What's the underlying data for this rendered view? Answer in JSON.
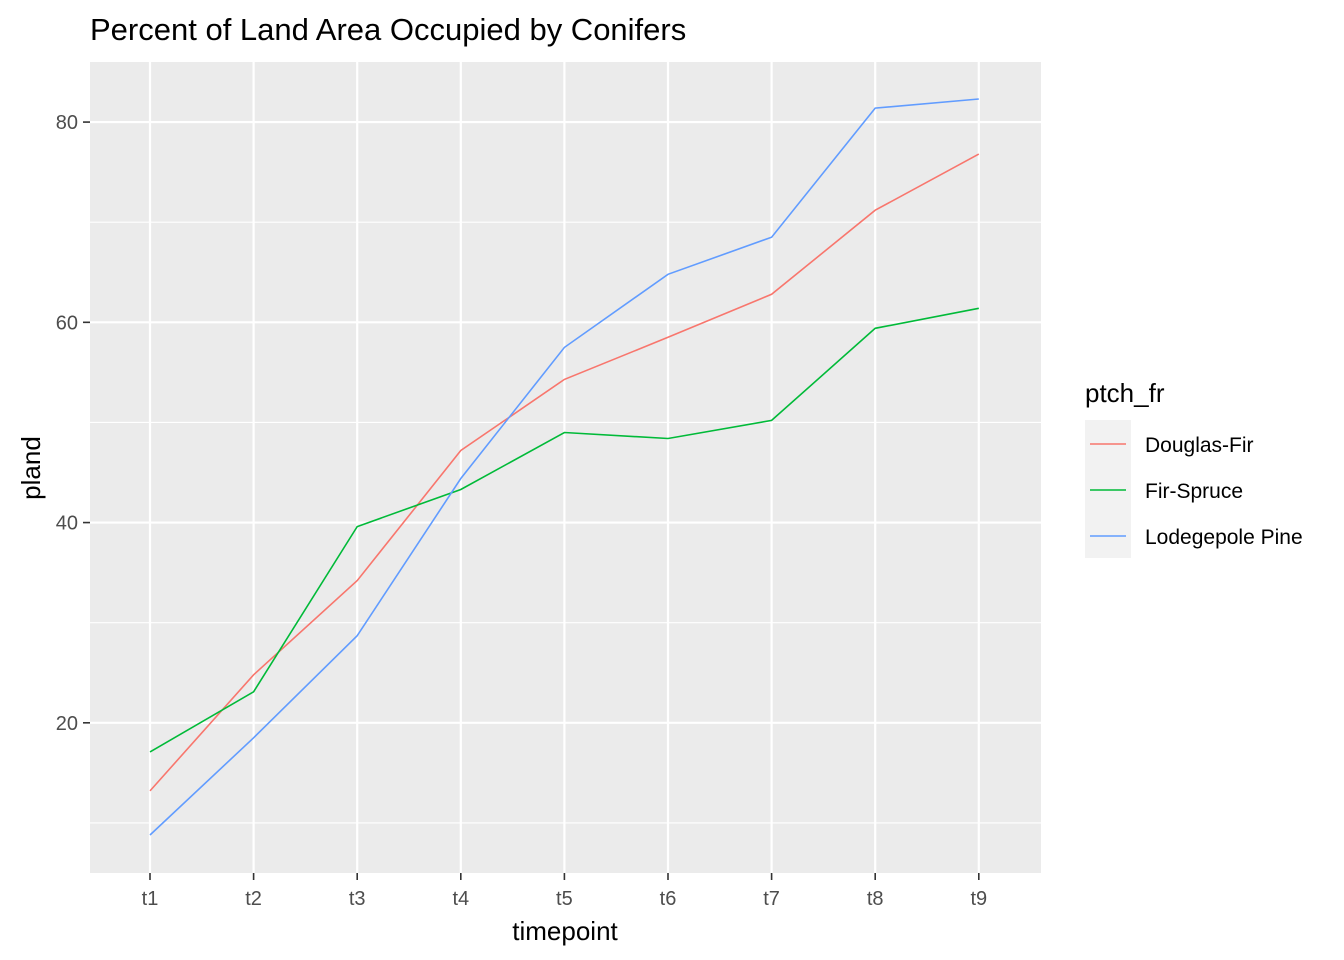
{
  "chart_data": {
    "type": "line",
    "title": "Percent of Land Area Occupied by Conifers",
    "xlabel": "timepoint",
    "ylabel": "pland",
    "categories": [
      "t1",
      "t2",
      "t3",
      "t4",
      "t5",
      "t6",
      "t7",
      "t8",
      "t9"
    ],
    "ylim": [
      5,
      86
    ],
    "yticks": [
      20,
      40,
      60,
      80
    ],
    "grid": true,
    "legend": {
      "title": "ptch_fr",
      "position": "right"
    },
    "series": [
      {
        "name": "Douglas-Fir",
        "color": "#F8766D",
        "values": [
          13.2,
          24.8,
          34.2,
          47.2,
          54.3,
          58.5,
          62.8,
          71.2,
          76.8
        ]
      },
      {
        "name": "Fir-Spruce",
        "color": "#00BA38",
        "values": [
          17.1,
          23.1,
          39.6,
          43.3,
          49.0,
          48.4,
          50.2,
          59.4,
          61.4
        ]
      },
      {
        "name": "Lodegepole Pine",
        "color": "#619CFF",
        "values": [
          8.8,
          18.5,
          28.7,
          44.4,
          57.5,
          64.8,
          68.5,
          81.4,
          82.3
        ]
      }
    ]
  }
}
